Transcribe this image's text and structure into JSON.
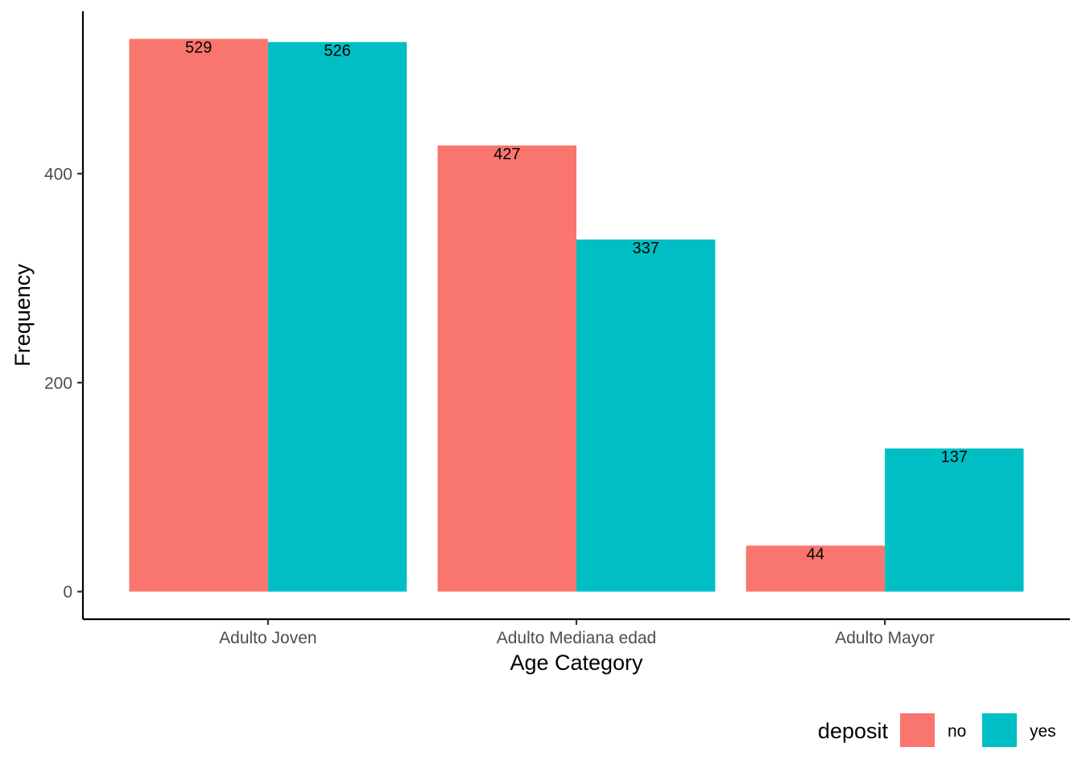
{
  "chart_data": {
    "type": "bar",
    "categories": [
      "Adulto Joven",
      "Adulto Mediana edad",
      "Adulto Mayor"
    ],
    "series": [
      {
        "name": "no",
        "values": [
          529,
          427,
          44
        ],
        "color": "#F8766D"
      },
      {
        "name": "yes",
        "values": [
          526,
          337,
          137
        ],
        "color": "#00BFC4"
      }
    ],
    "xlabel": "Age Category",
    "ylabel": "Frequency",
    "ylim": [
      -26.45,
      555.45
    ],
    "yticks": [
      0,
      200,
      400
    ],
    "grid": false,
    "legend": {
      "title": "deposit",
      "position": "bottom-right"
    }
  }
}
